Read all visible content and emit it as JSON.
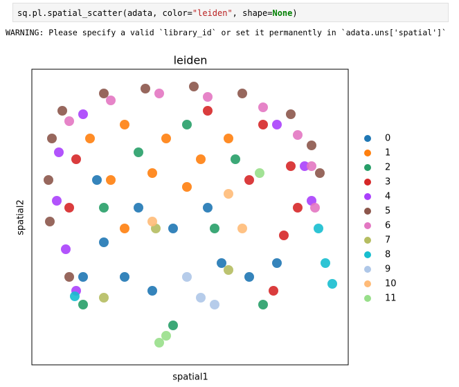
{
  "code": [
    "sq.pl.spatial_scatter(adata, color=",
    "\"leiden\"",
    ", shape=",
    "None",
    ")"
  ],
  "warning": "WARNING: Please specify a valid `library_id` or set it permanently in `adata.uns['spatial']`",
  "chart_data": {
    "type": "scatter",
    "title": "leiden",
    "x_label": "spatial1",
    "y_label": "spatial2",
    "xlim": [
      0,
      457
    ],
    "ylim": [
      427,
      0
    ],
    "series": [
      {
        "name": "0",
        "color": "#1f77b4",
        "x": [
          104,
          134,
          174,
          274,
          314,
          354,
          94,
          204,
          74,
          154,
          254
        ],
        "y": [
          250,
          300,
          320,
          280,
          300,
          280,
          160,
          230,
          300,
          200,
          200
        ]
      },
      {
        "name": "1",
        "color": "#ff7f0e",
        "x": [
          84,
          134,
          194,
          244,
          114,
          174,
          284,
          134,
          224
        ],
        "y": [
          100,
          80,
          100,
          130,
          160,
          150,
          100,
          230,
          170
        ]
      },
      {
        "name": "2",
        "color": "#279e68",
        "x": [
          154,
          104,
          264,
          334,
          204,
          74,
          294,
          224
        ],
        "y": [
          120,
          200,
          230,
          340,
          370,
          340,
          130,
          80
        ]
      },
      {
        "name": "3",
        "color": "#d62728",
        "x": [
          64,
          54,
          334,
          374,
          384,
          364,
          254,
          314,
          349
        ],
        "y": [
          130,
          200,
          80,
          140,
          200,
          240,
          60,
          160,
          320
        ]
      },
      {
        "name": "4",
        "color": "#aa40fc",
        "x": [
          39,
          36,
          49,
          64,
          394,
          404,
          74,
          354
        ],
        "y": [
          120,
          190,
          260,
          320,
          140,
          190,
          65,
          80
        ]
      },
      {
        "name": "5",
        "color": "#8c564b",
        "x": [
          44,
          29,
          24,
          26,
          54,
          104,
          164,
          234,
          304,
          374,
          404,
          416
        ],
        "y": [
          60,
          100,
          160,
          220,
          300,
          35,
          28,
          25,
          35,
          65,
          110,
          150
        ]
      },
      {
        "name": "6",
        "color": "#e377c2",
        "x": [
          54,
          114,
          184,
          254,
          334,
          384,
          404,
          409
        ],
        "y": [
          75,
          45,
          35,
          40,
          55,
          95,
          140,
          200
        ]
      },
      {
        "name": "7",
        "color": "#b5bd61",
        "x": [
          179,
          104,
          284
        ],
        "y": [
          230,
          330,
          290
        ]
      },
      {
        "name": "8",
        "color": "#17becf",
        "x": [
          414,
          424,
          434,
          62
        ],
        "y": [
          230,
          280,
          310,
          328
        ]
      },
      {
        "name": "9",
        "color": "#aec7e8",
        "x": [
          224,
          244,
          264
        ],
        "y": [
          300,
          330,
          340
        ]
      },
      {
        "name": "10",
        "color": "#ffbb78",
        "x": [
          174,
          284,
          304
        ],
        "y": [
          220,
          180,
          230
        ]
      },
      {
        "name": "11",
        "color": "#98df8a",
        "x": [
          184,
          194,
          329
        ],
        "y": [
          395,
          385,
          150
        ]
      }
    ]
  }
}
